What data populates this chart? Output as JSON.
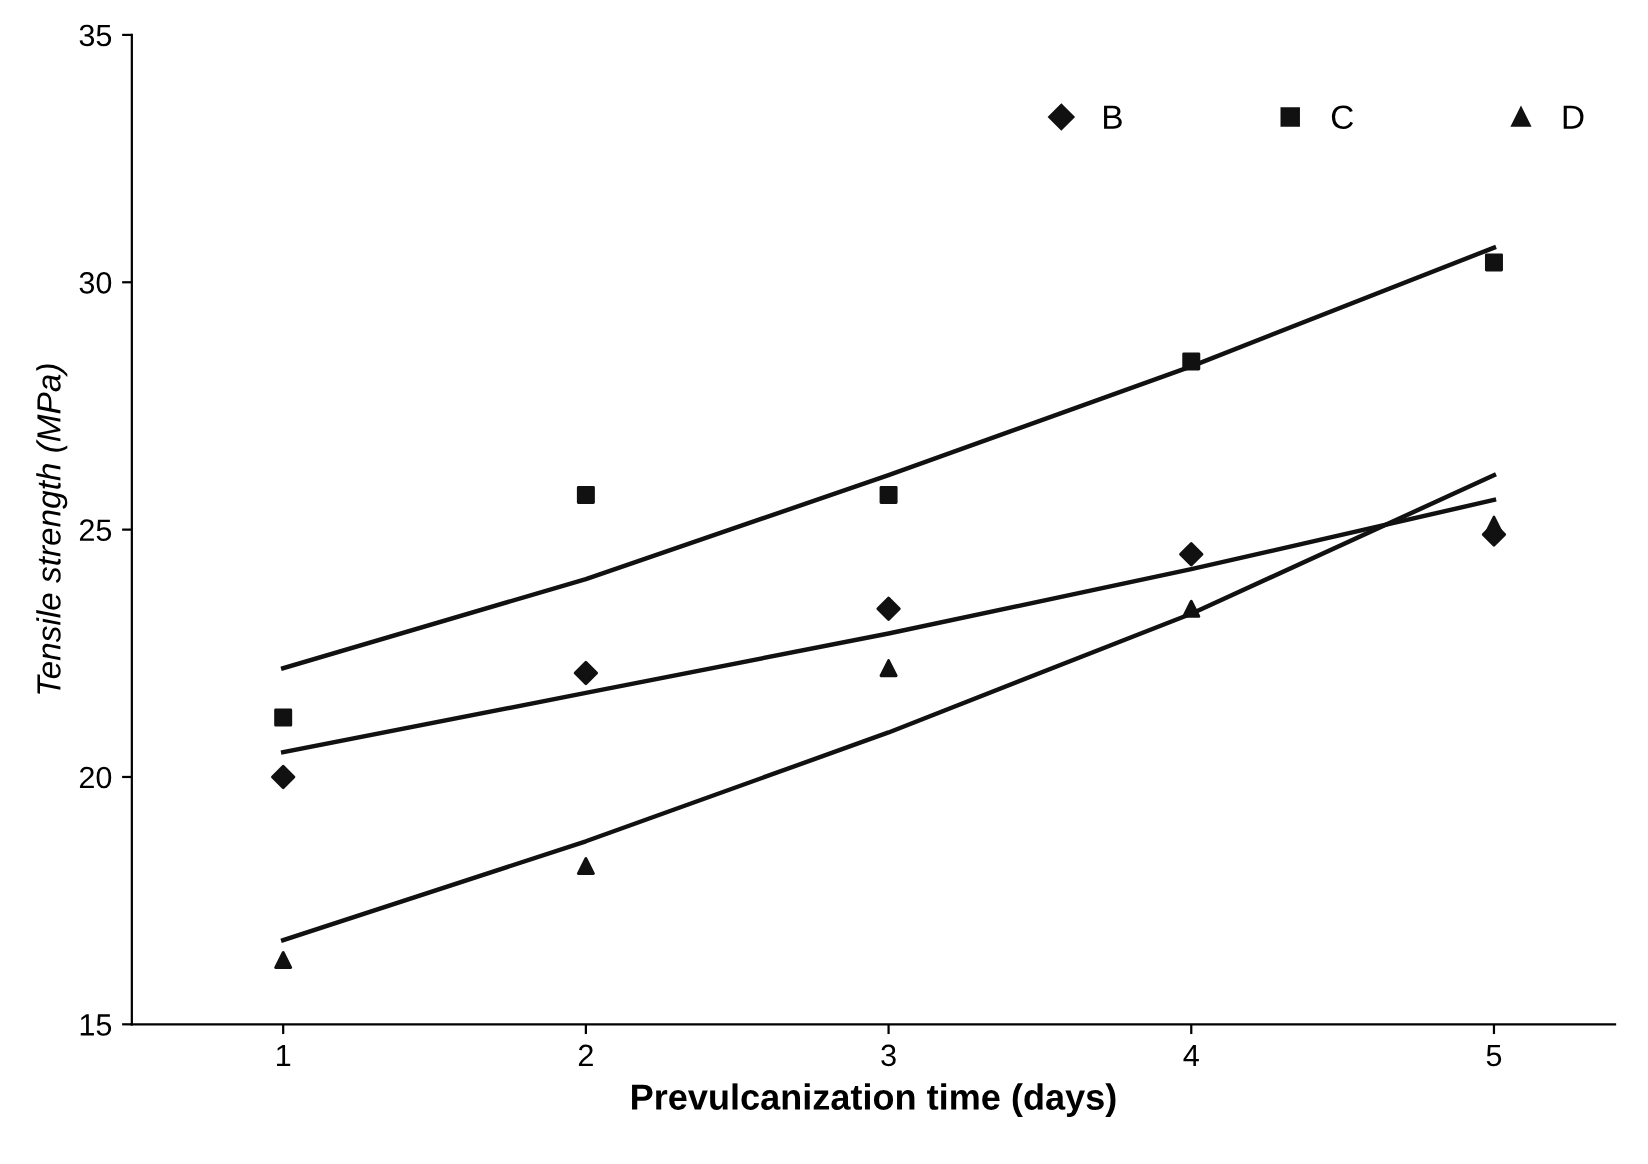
{
  "chart_data": {
    "type": "scatter",
    "xlabel": "Prevulcanization time (days)",
    "ylabel": "Tensile strength (MPa)",
    "x": [
      1,
      2,
      3,
      4,
      5
    ],
    "xlim": [
      0.5,
      5.4
    ],
    "xticks": [
      1,
      2,
      3,
      4,
      5
    ],
    "ylim": [
      15,
      35
    ],
    "yticks": [
      15,
      20,
      25,
      30,
      35
    ],
    "grid": false,
    "legend": "top right",
    "series": [
      {
        "name": "B",
        "color": "#111111",
        "marker": "diamond",
        "values": [
          20.0,
          22.1,
          23.4,
          24.5,
          24.9
        ]
      },
      {
        "name": "C",
        "color": "#111111",
        "marker": "square",
        "values": [
          21.2,
          25.7,
          25.7,
          28.4,
          30.4
        ]
      },
      {
        "name": "D",
        "color": "#111111",
        "marker": "triangle",
        "values": [
          16.3,
          18.2,
          22.2,
          23.4,
          25.1
        ]
      },
      {
        "type": "line",
        "color": "#111111",
        "marker": "none",
        "line_style": "solid",
        "x": [
          1,
          2,
          3,
          4,
          5
        ],
        "values": [
          20.5,
          21.7,
          22.9,
          24.2,
          25.6
        ]
      },
      {
        "type": "line",
        "color": "#111111",
        "marker": "none",
        "line_style": "solid",
        "x": [
          1,
          2,
          3,
          4,
          5
        ],
        "values": [
          22.2,
          24.0,
          26.1,
          28.3,
          30.7
        ]
      },
      {
        "type": "line",
        "color": "#111111",
        "marker": "none",
        "line_style": "solid",
        "x": [
          1,
          2,
          3,
          4,
          5
        ],
        "values": [
          16.7,
          18.7,
          20.9,
          23.3,
          26.1
        ]
      }
    ]
  }
}
